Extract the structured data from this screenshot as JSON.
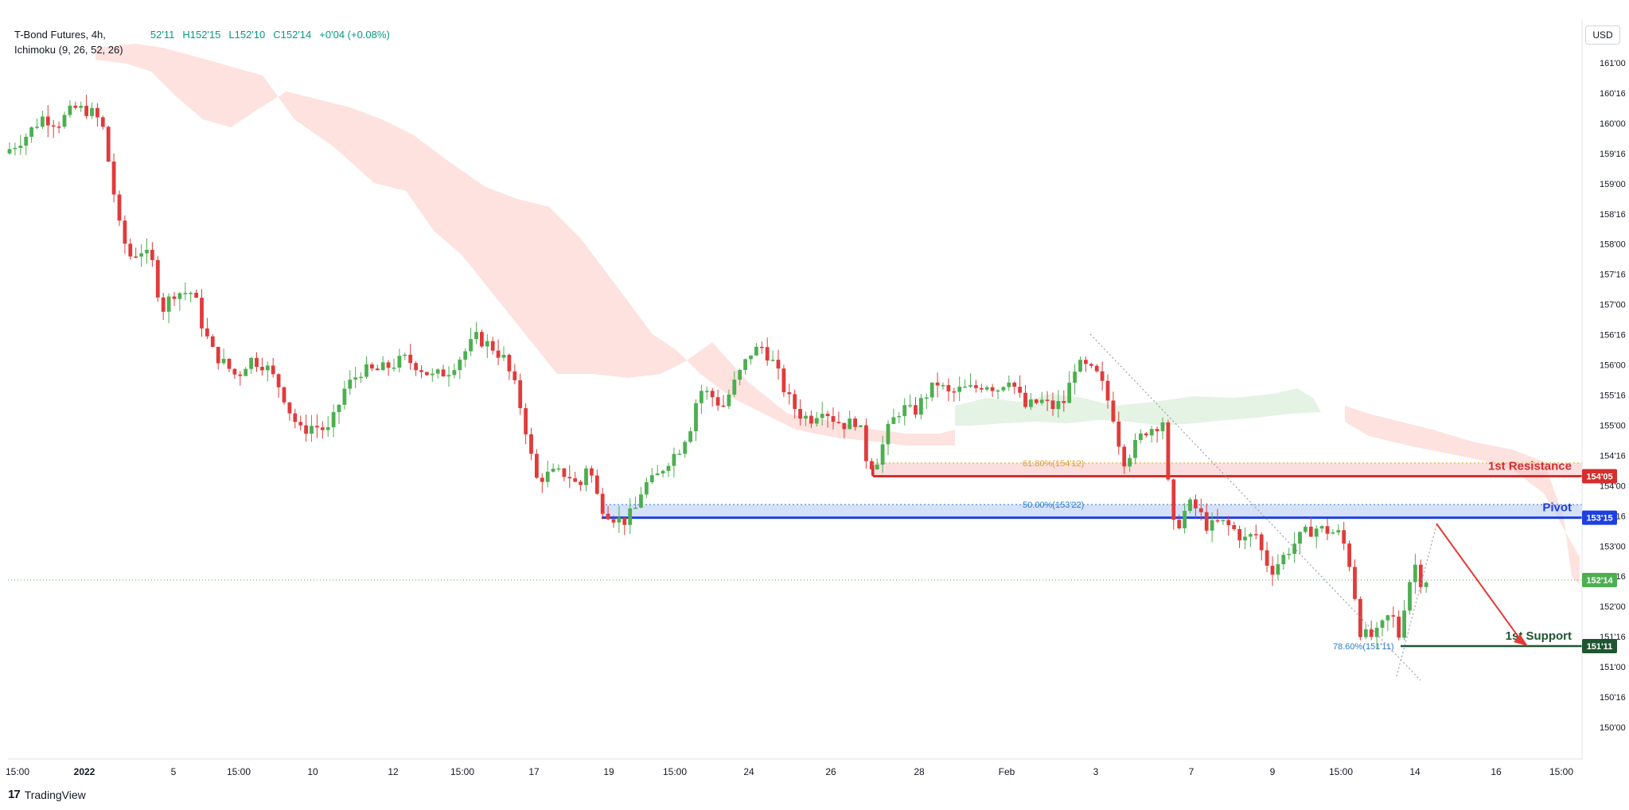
{
  "legend": {
    "symbol": "T-Bond Futures, 4h,",
    "open": "52'11",
    "high": "H152'15",
    "low": "L152'10",
    "close": "C152'14",
    "change": "+0'04 (+0.08%)",
    "indicator": "Ichimoku (9, 26, 52, 26)"
  },
  "currency": "USD",
  "branding": {
    "logo_text": "TradingView"
  },
  "colors": {
    "up": "#4caf50",
    "down": "#e03b3b",
    "resistance": "#d32f2f",
    "pivot": "#1e40e0",
    "support": "#1e5631",
    "cloud_bear": "#fde2df",
    "cloud_bull": "#e4f3e4",
    "fib_resistance": "#e0a030",
    "fib_blue": "#2a7dd1"
  },
  "chart_data": {
    "type": "candlestick",
    "title": "T-Bond Futures, 4h",
    "y_axis_ticks": [
      "161'00",
      "160'16",
      "160'00",
      "159'16",
      "159'00",
      "158'16",
      "158'00",
      "157'16",
      "157'00",
      "156'16",
      "156'00",
      "155'16",
      "155'00",
      "154'16",
      "154'00",
      "153'16",
      "153'00",
      "152'16",
      "152'00",
      "151'16",
      "151'00",
      "150'16",
      "150'00"
    ],
    "x_axis_ticks": [
      "15:00",
      "2022",
      "5",
      "15:00",
      "10",
      "12",
      "15:00",
      "17",
      "19",
      "15:00",
      "24",
      "26",
      "28",
      "Feb",
      "3",
      "7",
      "9",
      "15:00",
      "14",
      "16",
      "15:00"
    ],
    "ylim": [
      149.625,
      161.25
    ],
    "y_scale": "price in 32nds (e.g. 153'15 = 153 15/32)",
    "grid": false,
    "current_price": "152'14",
    "levels": [
      {
        "name": "1st Resistance",
        "price": "154'05",
        "value": 154.156
      },
      {
        "name": "Pivot",
        "price": "153'15",
        "value": 153.469
      },
      {
        "name": "1st Support",
        "price": "151'11",
        "value": 151.344
      }
    ],
    "fibonacci": [
      {
        "label": "61.80%(154'12)",
        "value": 154.375
      },
      {
        "label": "50.00%(153'22)",
        "value": 153.6875
      },
      {
        "label": "78.60%(151'11)",
        "value": 151.344
      }
    ],
    "annotations": [
      "1st Resistance",
      "Pivot",
      "1st Support"
    ],
    "forecast": "arrow pointing down from near pivot toward 1st Support",
    "key_points": [
      {
        "date": "Dec 30",
        "price": 159.5
      },
      {
        "date": "Dec 31 high",
        "price": 160.3
      },
      {
        "date": "Jan 4",
        "price": 157.6
      },
      {
        "date": "Jan 10",
        "price": 154.9
      },
      {
        "date": "Jan 14",
        "price": 156.5
      },
      {
        "date": "Jan 18",
        "price": 153.8
      },
      {
        "date": "Jan 19 low",
        "price": 153.25
      },
      {
        "date": "Jan 24",
        "price": 156.4
      },
      {
        "date": "Jan 27 low",
        "price": 154.0
      },
      {
        "date": "Feb 2 high",
        "price": 156.4
      },
      {
        "date": "Feb 4",
        "price": 153.4
      },
      {
        "date": "Feb 10",
        "price": 153.3
      },
      {
        "date": "Feb 11 low",
        "price": 151.1
      },
      {
        "date": "Feb 14",
        "price": 152.4
      }
    ]
  }
}
